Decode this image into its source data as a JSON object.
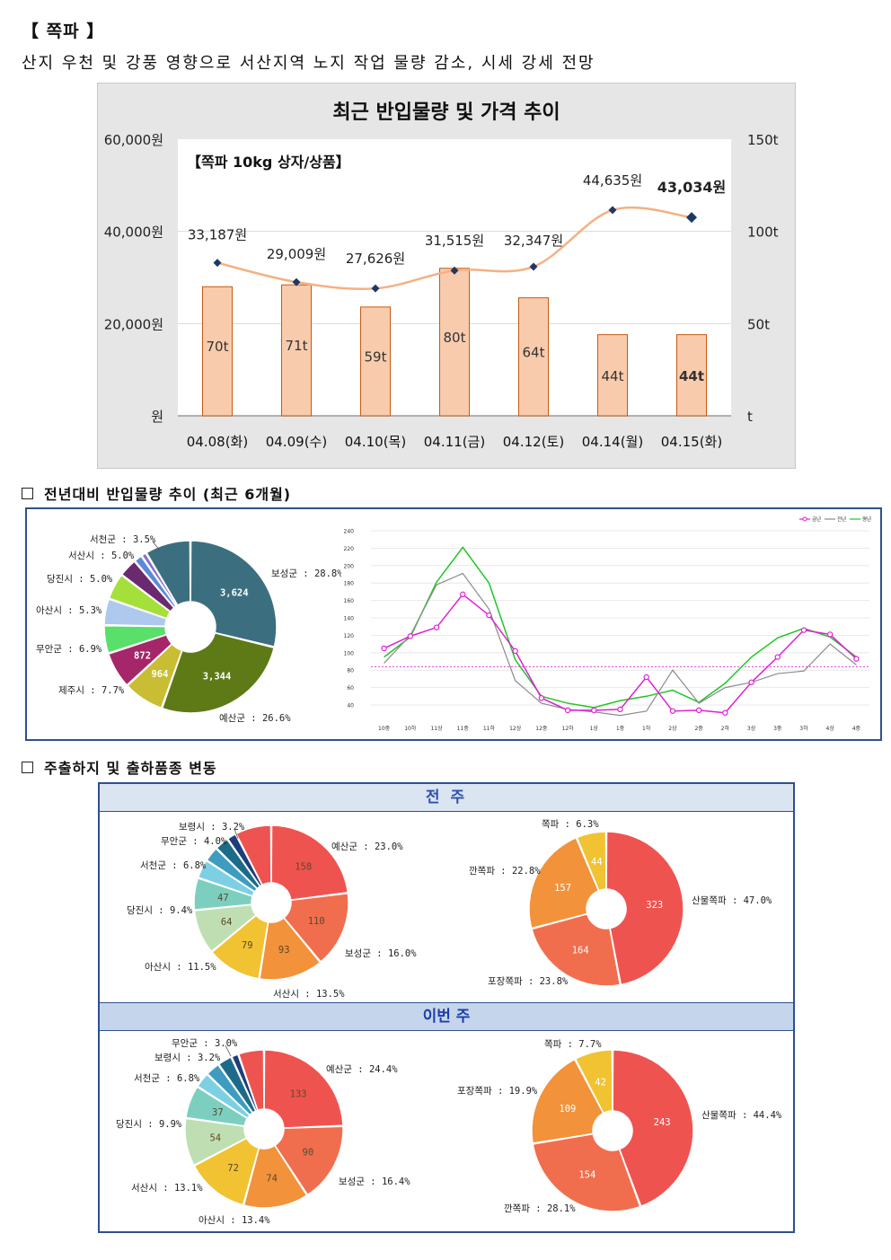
{
  "header": {
    "title": "【 쪽파 】",
    "subtitle": "산지 우천 및 강풍 영향으로 서산지역 노지 작업 물량 감소, 시세 강세 전망"
  },
  "chart1": {
    "chart_data": {
      "type": "bar+line",
      "title": "최근 반입물량 및 가격 추이",
      "annotation": "【쪽파 10kg 상자/상품】",
      "categories": [
        "04.08(화)",
        "04.09(수)",
        "04.10(목)",
        "04.11(금)",
        "04.12(토)",
        "04.14(월)",
        "04.15(화)"
      ],
      "volume_values": [
        70,
        71,
        59,
        80,
        64,
        44,
        44
      ],
      "volume_labels": [
        "70t",
        "71t",
        "59t",
        "80t",
        "64t",
        "44t",
        "44t"
      ],
      "price_values": [
        33187,
        29009,
        27626,
        31515,
        32347,
        44635,
        43034
      ],
      "price_labels": [
        "33,187원",
        "29,009원",
        "27,626원",
        "31,515원",
        "32,347원",
        "44,635원",
        "43,034원"
      ],
      "left_ticks": [
        "60,000원",
        "40,000원",
        "20,000원",
        "원"
      ],
      "right_ticks": [
        "150t",
        "100t",
        "50t",
        "t"
      ],
      "ylim_left": [
        0,
        60000
      ],
      "ylim_right": [
        0,
        150
      ],
      "bar_color": "#f8cbad",
      "bar_border": "#c55a11",
      "line_color": "#f4b183",
      "marker_color": "#1f3864"
    }
  },
  "section2": {
    "heading": "전년대비 반입물량 추이 (최근 6개월)",
    "pie": {
      "chart_data": {
        "type": "pie",
        "slices": [
          {
            "name": "보성군",
            "pct": 28.8,
            "value": "3,624",
            "label": "보성군 : 28.8%",
            "color": "#3b6f7f"
          },
          {
            "name": "예산군",
            "pct": 26.6,
            "value": "3,344",
            "label": "예산군 : 26.6%",
            "color": "#5e7a17"
          },
          {
            "name": "제주시",
            "pct": 7.7,
            "value": "964",
            "label": "제주시 : 7.7%",
            "color": "#c9bd33"
          },
          {
            "name": "무안군",
            "pct": 6.9,
            "value": "872",
            "label": "무안군 : 6.9%",
            "color": "#a6266a"
          },
          {
            "name": "아산시",
            "pct": 5.3,
            "value": "",
            "label": "아산시 : 5.3%",
            "color": "#59e06b"
          },
          {
            "name": "당진시",
            "pct": 5.0,
            "value": "",
            "label": "당진시 : 5.0%",
            "color": "#aec8ee"
          },
          {
            "name": "서산시",
            "pct": 5.0,
            "value": "",
            "label": "서산시 : 5.0%",
            "color": "#a5e03a"
          },
          {
            "name": "서천군",
            "pct": 3.5,
            "value": "",
            "label": "서천군 : 3.5%",
            "color": "#6b2a70"
          },
          {
            "name": "other1",
            "pct": 1.6,
            "value": "",
            "label": "",
            "color": "#5b8ad9"
          },
          {
            "name": "other2",
            "pct": 1.0,
            "value": "",
            "label": "",
            "color": "#8a6fc7"
          },
          {
            "name": "other3",
            "pct": 8.6,
            "value": "",
            "label": "",
            "color": "#3b6f7f"
          }
        ]
      }
    },
    "line": {
      "chart_data": {
        "type": "line",
        "legend": [
          "금년",
          "전년",
          "평년"
        ],
        "categories": [
          "10중",
          "10하",
          "11상",
          "11중",
          "11하",
          "12상",
          "12중",
          "12하",
          "1상",
          "1중",
          "1하",
          "2상",
          "2중",
          "2하",
          "3상",
          "3중",
          "3하",
          "4상",
          "4중"
        ],
        "series": [
          {
            "name": "금년",
            "color": "#e01fd6",
            "values": [
              105,
              119,
              129,
              167,
              143,
              102,
              48,
              34,
              34,
              35,
              72,
              33,
              34,
              31,
              66,
              95,
              126,
              121,
              93
            ]
          },
          {
            "name": "전년",
            "color": "#8c8c8c",
            "values": [
              88,
              120,
              178,
              191,
              150,
              68,
              42,
              35,
              32,
              28,
              33,
              80,
              42,
              60,
              66,
              76,
              79,
              110,
              86
            ]
          },
          {
            "name": "평년",
            "color": "#22c426",
            "values": [
              95,
              118,
              181,
              221,
              180,
              92,
              50,
              42,
              37,
              45,
              50,
              57,
              43,
              65,
              95,
              117,
              128,
              118,
              95
            ]
          }
        ],
        "avg_line": 84,
        "ylim": [
          40,
          240
        ],
        "yticks": [
          "240",
          "220",
          "200",
          "180",
          "160",
          "140",
          "120",
          "100",
          "80",
          "60",
          "40"
        ]
      }
    }
  },
  "section3": {
    "heading": "주출하지 및 출하품종 변동",
    "prev_week": {
      "label": "전 주",
      "region_pie": {
        "chart_data": {
          "type": "pie",
          "slices": [
            {
              "name": "예산군",
              "pct": 23.0,
              "value": "158",
              "label": "예산군 : 23.0%",
              "color": "#ef5350"
            },
            {
              "name": "보성군",
              "pct": 16.0,
              "value": "110",
              "label": "보성군 : 16.0%",
              "color": "#f06e4e"
            },
            {
              "name": "서산시",
              "pct": 13.5,
              "value": "93",
              "label": "서산시 : 13.5%",
              "color": "#f2923a"
            },
            {
              "name": "아산시",
              "pct": 11.5,
              "value": "79",
              "label": "아산시 : 11.5%",
              "color": "#f1c232"
            },
            {
              "name": "당진시",
              "pct": 9.4,
              "value": "64",
              "label": "당진시 : 9.4%",
              "color": "#bfdfb3"
            },
            {
              "name": "서천군",
              "pct": 6.8,
              "value": "47",
              "label": "서천군 : 6.8%",
              "color": "#7ccfbf"
            },
            {
              "name": "무안군",
              "pct": 4.0,
              "value": "",
              "label": "무안군 : 4.0%",
              "color": "#7dd0e3"
            },
            {
              "name": "보령시",
              "pct": 3.2,
              "value": "",
              "label": "보령시 : 3.2%",
              "color": "#3e9cc0"
            },
            {
              "name": "other1",
              "pct": 3.0,
              "value": "",
              "label": "",
              "color": "#1d6b8a"
            },
            {
              "name": "other2",
              "pct": 2.0,
              "value": "",
              "label": "",
              "color": "#1e3d7a"
            },
            {
              "name": "other3",
              "pct": 7.6,
              "value": "",
              "label": "",
              "color": "#ef5350"
            }
          ]
        }
      },
      "variety_pie": {
        "chart_data": {
          "type": "pie",
          "slices": [
            {
              "name": "산물쪽파",
              "pct": 47.0,
              "value": "323",
              "label": "산물쪽파 : 47.0%",
              "color": "#ef5350"
            },
            {
              "name": "포장쪽파",
              "pct": 23.8,
              "value": "164",
              "label": "포장쪽파 : 23.8%",
              "color": "#f06e4e"
            },
            {
              "name": "깐쪽파",
              "pct": 22.8,
              "value": "157",
              "label": "깐쪽파 : 22.8%",
              "color": "#f2923a"
            },
            {
              "name": "쪽파",
              "pct": 6.3,
              "value": "44",
              "label": "쪽파 : 6.3%",
              "color": "#f1c232"
            }
          ]
        }
      }
    },
    "this_week": {
      "label": "이번 주",
      "region_pie": {
        "chart_data": {
          "type": "pie",
          "slices": [
            {
              "name": "예산군",
              "pct": 24.4,
              "value": "133",
              "label": "예산군 : 24.4%",
              "color": "#ef5350"
            },
            {
              "name": "보성군",
              "pct": 16.4,
              "value": "90",
              "label": "보성군 : 16.4%",
              "color": "#f06e4e"
            },
            {
              "name": "아산시",
              "pct": 13.4,
              "value": "74",
              "label": "아산시 : 13.4%",
              "color": "#f2923a"
            },
            {
              "name": "서산시",
              "pct": 13.1,
              "value": "72",
              "label": "서산시 : 13.1%",
              "color": "#f1c232"
            },
            {
              "name": "당진시",
              "pct": 9.9,
              "value": "54",
              "label": "당진시 : 9.9%",
              "color": "#bfdfb3"
            },
            {
              "name": "서천군",
              "pct": 6.8,
              "value": "37",
              "label": "서천군 : 6.8%",
              "color": "#7ccfbf"
            },
            {
              "name": "보령시",
              "pct": 3.2,
              "value": "",
              "label": "보령시 : 3.2%",
              "color": "#7dd0e3"
            },
            {
              "name": "무안군",
              "pct": 3.0,
              "value": "",
              "label": "무안군 : 3.0%",
              "color": "#3e9cc0"
            },
            {
              "name": "other1",
              "pct": 3.0,
              "value": "",
              "label": "",
              "color": "#1d6b8a"
            },
            {
              "name": "other2",
              "pct": 1.5,
              "value": "",
              "label": "",
              "color": "#1e3d7a"
            },
            {
              "name": "other3",
              "pct": 5.3,
              "value": "",
              "label": "",
              "color": "#ef5350"
            }
          ]
        }
      },
      "variety_pie": {
        "chart_data": {
          "type": "pie",
          "slices": [
            {
              "name": "산물쪽파",
              "pct": 44.4,
              "value": "243",
              "label": "산물쪽파 : 44.4%",
              "color": "#ef5350"
            },
            {
              "name": "깐쪽파",
              "pct": 28.1,
              "value": "154",
              "label": "깐쪽파 : 28.1%",
              "color": "#f06e4e"
            },
            {
              "name": "포장쪽파",
              "pct": 19.9,
              "value": "109",
              "label": "포장쪽파 : 19.9%",
              "color": "#f2923a"
            },
            {
              "name": "쪽파",
              "pct": 7.7,
              "value": "42",
              "label": "쪽파 : 7.7%",
              "color": "#f1c232"
            }
          ]
        }
      }
    }
  }
}
